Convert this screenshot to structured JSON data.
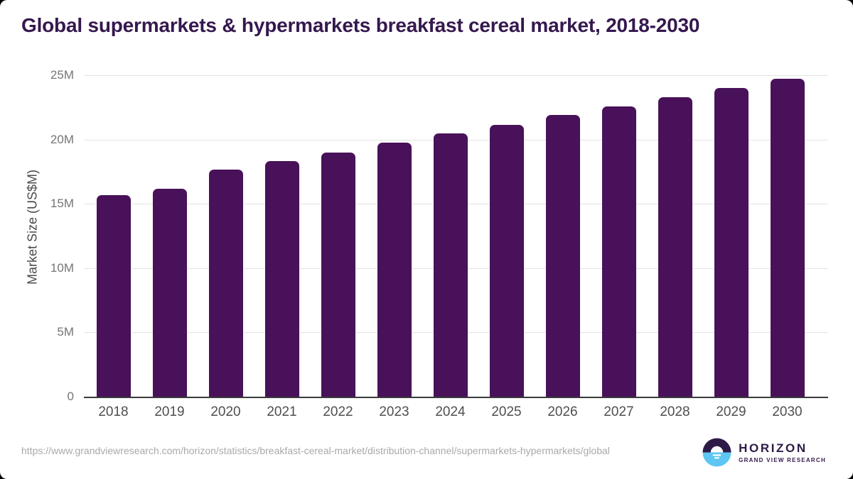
{
  "title": "Global supermarkets & hypermarkets breakfast cereal market, 2018-2030",
  "chart_data": {
    "type": "bar",
    "title": "Global supermarkets & hypermarkets breakfast cereal market, 2018-2030",
    "categories": [
      "2018",
      "2019",
      "2020",
      "2021",
      "2022",
      "2023",
      "2024",
      "2025",
      "2026",
      "2027",
      "2028",
      "2029",
      "2030"
    ],
    "values": [
      15.7,
      16.15,
      17.65,
      18.35,
      19.0,
      19.75,
      20.45,
      21.15,
      21.9,
      22.6,
      23.3,
      24.0,
      24.75
    ],
    "unit": "US$M",
    "xlabel": "",
    "ylabel": "Market Size (US$M)",
    "ylim": [
      0,
      25
    ],
    "yticks": [
      0,
      5,
      10,
      15,
      20,
      25
    ],
    "ytick_labels": [
      "0",
      "5M",
      "10M",
      "15M",
      "20M",
      "25M"
    ],
    "grid": true,
    "legend": null,
    "bar_color": "#481159"
  },
  "footer": {
    "source_url": "https://www.grandviewresearch.com/horizon/statistics/breakfast-cereal-market/distribution-channel/supermarkets-hypermarkets/global",
    "logo_name": "HORIZON",
    "logo_subtitle": "GRAND VIEW RESEARCH"
  },
  "colors": {
    "title_text": "#35184e",
    "bar": "#481159",
    "gridline": "#e3e3e3",
    "axis_line": "#3a3a3a",
    "y_tick_label": "#757575",
    "x_tick_label": "#4f4f4f",
    "url_text": "#a9a9a9",
    "logo_purple": "#2e1a47",
    "logo_blue": "#5ec6f2"
  }
}
